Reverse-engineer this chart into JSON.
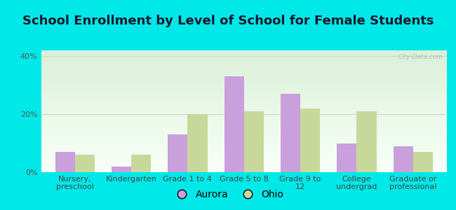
{
  "title": "School Enrollment by Level of School for Female Students",
  "categories": [
    "Nursery,\npreschool",
    "Kindergarten",
    "Grade 1 to 4",
    "Grade 5 to 8",
    "Grade 9 to\n12",
    "College\nundergrad",
    "Graduate or\nprofessional"
  ],
  "aurora_values": [
    7.0,
    2.0,
    13.0,
    33.0,
    27.0,
    10.0,
    9.0
  ],
  "ohio_values": [
    6.0,
    6.0,
    20.0,
    21.0,
    22.0,
    21.0,
    7.0
  ],
  "aurora_color": "#c9a0dc",
  "ohio_color": "#c8d89a",
  "background_color": "#00e8e8",
  "plot_bg_top": "#daf0d8",
  "plot_bg_bottom": "#f8fff8",
  "yticks": [
    0,
    20,
    40
  ],
  "ylim": [
    0,
    42
  ],
  "bar_width": 0.35,
  "legend_labels": [
    "Aurora",
    "Ohio"
  ],
  "title_fontsize": 13,
  "tick_fontsize": 8,
  "legend_fontsize": 10,
  "watermark": "City-Data.com",
  "grid_color": "#d0d0d0"
}
